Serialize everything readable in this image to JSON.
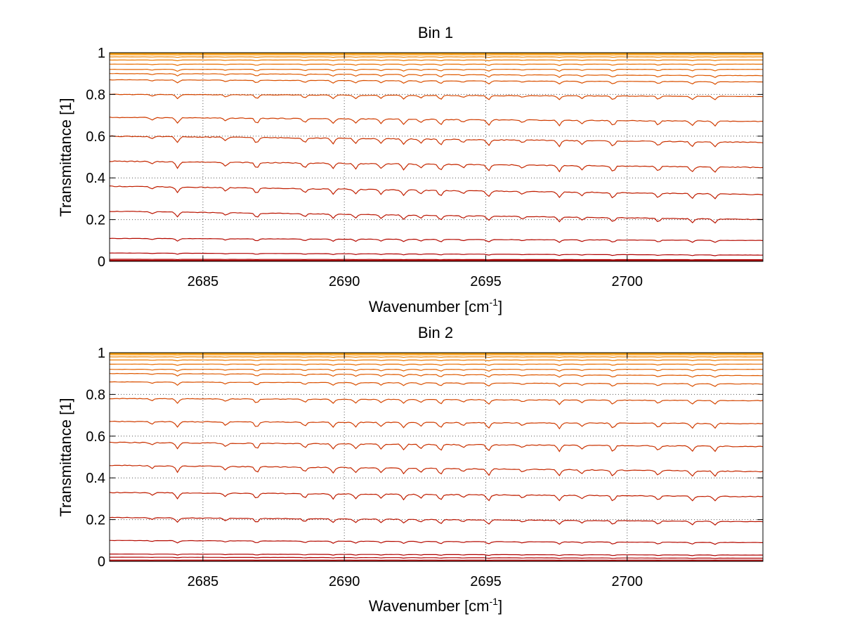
{
  "chart_data": [
    {
      "type": "line",
      "title": "Bin 1",
      "xlabel": "Wavenumber [cm",
      "xlabel_sup": "-1",
      "xlabel_end": "]",
      "ylabel": "Transmittance [1]",
      "xlim": [
        2681.7,
        2704.8
      ],
      "ylim": [
        0,
        1
      ],
      "grid": true,
      "xticks": [
        "2685",
        "2690",
        "2695",
        "2700"
      ],
      "xtick_values": [
        2685,
        2690,
        2695,
        2700
      ],
      "yticks": [
        "0",
        "0.2",
        "0.4",
        "0.6",
        "0.8",
        "1"
      ],
      "ytick_values": [
        0,
        0.2,
        0.4,
        0.6,
        0.8,
        1
      ],
      "series": [
        {
          "start": 0.002,
          "end": 0.002,
          "color": "#b00000"
        },
        {
          "start": 0.005,
          "end": 0.005,
          "color": "#b00000"
        },
        {
          "start": 0.01,
          "end": 0.008,
          "color": "#b00000"
        },
        {
          "start": 0.04,
          "end": 0.03,
          "color": "#b00000"
        },
        {
          "start": 0.11,
          "end": 0.1,
          "color": "#b50a00"
        },
        {
          "start": 0.24,
          "end": 0.2,
          "color": "#ba1400"
        },
        {
          "start": 0.36,
          "end": 0.32,
          "color": "#c01e00"
        },
        {
          "start": 0.48,
          "end": 0.45,
          "color": "#c52800"
        },
        {
          "start": 0.6,
          "end": 0.57,
          "color": "#ca3200"
        },
        {
          "start": 0.69,
          "end": 0.67,
          "color": "#d03c00"
        },
        {
          "start": 0.8,
          "end": 0.79,
          "color": "#d54600"
        },
        {
          "start": 0.87,
          "end": 0.86,
          "color": "#da5000"
        },
        {
          "start": 0.9,
          "end": 0.89,
          "color": "#df5a00"
        },
        {
          "start": 0.92,
          "end": 0.92,
          "color": "#e46400"
        },
        {
          "start": 0.945,
          "end": 0.945,
          "color": "#e86e00"
        },
        {
          "start": 0.965,
          "end": 0.965,
          "color": "#ec7a00"
        },
        {
          "start": 0.98,
          "end": 0.98,
          "color": "#f08400"
        },
        {
          "start": 0.99,
          "end": 0.99,
          "color": "#f48e00"
        },
        {
          "start": 0.995,
          "end": 0.995,
          "color": "#f89800"
        },
        {
          "start": 0.998,
          "end": 0.998,
          "color": "#fca000"
        },
        {
          "start": 0.999,
          "end": 0.999,
          "color": "#e0b020"
        }
      ]
    },
    {
      "type": "line",
      "title": "Bin 2",
      "xlabel": "Wavenumber [cm",
      "xlabel_sup": "-1",
      "xlabel_end": "]",
      "ylabel": "Transmittance [1]",
      "xlim": [
        2681.7,
        2704.8
      ],
      "ylim": [
        0,
        1
      ],
      "grid": true,
      "xticks": [
        "2685",
        "2690",
        "2695",
        "2700"
      ],
      "xtick_values": [
        2685,
        2690,
        2695,
        2700
      ],
      "yticks": [
        "0",
        "0.2",
        "0.4",
        "0.6",
        "0.8",
        "1"
      ],
      "ytick_values": [
        0,
        0.2,
        0.4,
        0.6,
        0.8,
        1
      ],
      "series": [
        {
          "start": 0.002,
          "end": 0.002,
          "color": "#b00000"
        },
        {
          "start": 0.006,
          "end": 0.006,
          "color": "#b00000"
        },
        {
          "start": 0.02,
          "end": 0.015,
          "color": "#b00000"
        },
        {
          "start": 0.035,
          "end": 0.03,
          "color": "#b00000"
        },
        {
          "start": 0.1,
          "end": 0.09,
          "color": "#b50a00"
        },
        {
          "start": 0.21,
          "end": 0.19,
          "color": "#ba1400"
        },
        {
          "start": 0.33,
          "end": 0.31,
          "color": "#c01e00"
        },
        {
          "start": 0.46,
          "end": 0.43,
          "color": "#c52800"
        },
        {
          "start": 0.57,
          "end": 0.55,
          "color": "#ca3200"
        },
        {
          "start": 0.67,
          "end": 0.66,
          "color": "#d03c00"
        },
        {
          "start": 0.78,
          "end": 0.77,
          "color": "#d54600"
        },
        {
          "start": 0.86,
          "end": 0.85,
          "color": "#da5000"
        },
        {
          "start": 0.9,
          "end": 0.89,
          "color": "#df5a00"
        },
        {
          "start": 0.92,
          "end": 0.92,
          "color": "#e46400"
        },
        {
          "start": 0.945,
          "end": 0.945,
          "color": "#e86e00"
        },
        {
          "start": 0.965,
          "end": 0.965,
          "color": "#ec7a00"
        },
        {
          "start": 0.98,
          "end": 0.98,
          "color": "#f08400"
        },
        {
          "start": 0.99,
          "end": 0.99,
          "color": "#f48e00"
        },
        {
          "start": 0.995,
          "end": 0.995,
          "color": "#f89800"
        },
        {
          "start": 0.998,
          "end": 0.998,
          "color": "#fca000"
        },
        {
          "start": 0.999,
          "end": 0.999,
          "color": "#e0b020"
        }
      ]
    }
  ],
  "absorption_lines": [
    2683.2,
    2684.1,
    2685.8,
    2686.9,
    2688.6,
    2689.6,
    2690.4,
    2691.3,
    2692.1,
    2692.7,
    2693.4,
    2694.2,
    2695.1,
    2696.3,
    2697.6,
    2698.4,
    2699.5,
    2701.1,
    2702.3,
    2703.1
  ]
}
